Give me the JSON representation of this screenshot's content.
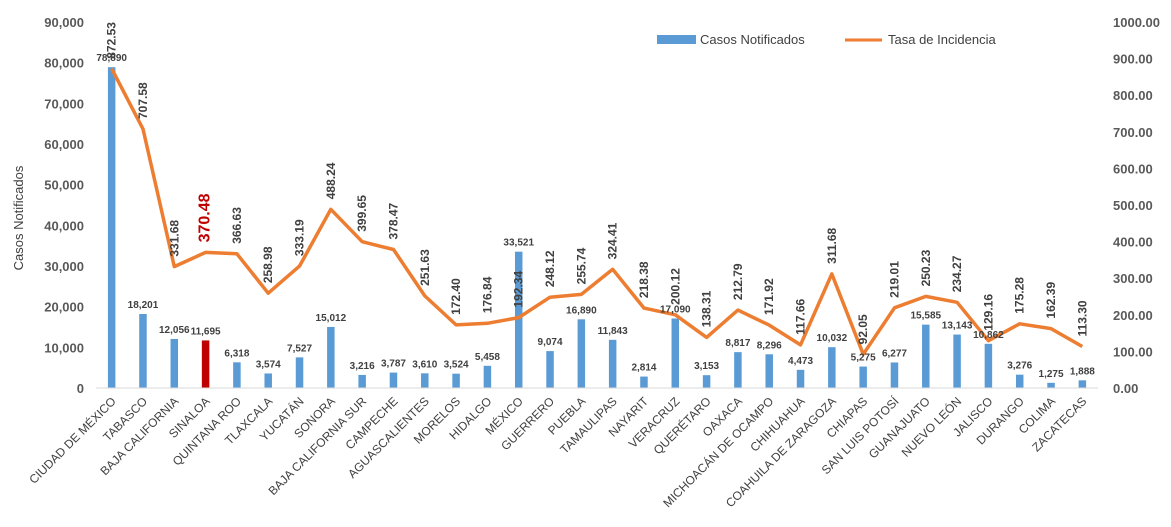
{
  "chart_data": {
    "type": "bar+line",
    "title": "",
    "ylabel_left": "Casos Notificados",
    "ylim_left": [
      0,
      90000
    ],
    "ylim_right": [
      0,
      1000
    ],
    "left_ticks": [
      "0",
      "10,000",
      "20,000",
      "30,000",
      "40,000",
      "50,000",
      "60,000",
      "70,000",
      "80,000",
      "90,000"
    ],
    "right_ticks": [
      "0.00",
      "100.00",
      "200.00",
      "300.00",
      "400.00",
      "500.00",
      "600.00",
      "700.00",
      "800.00",
      "900.00",
      "1000.00"
    ],
    "legend": {
      "position": "top-right",
      "items": [
        "Casos Notificados",
        "Tasa de Incidencia"
      ]
    },
    "bar_color": "#5b9bd5",
    "highlight_bar_color": "#c00000",
    "line_color": "#ed7d31",
    "highlight_index": 3,
    "categories": [
      "CIUDAD DE MÉXICO",
      "TABASCO",
      "BAJA CALIFORNIA",
      "SINALOA",
      "QUINTANA ROO",
      "TLAXCALA",
      "YUCATÁN",
      "SONORA",
      "BAJA CALIFORNIA SUR",
      "CAMPECHE",
      "AGUASCALIENTES",
      "MORELOS",
      "HIDALGO",
      "MÉXICO",
      "GUERRERO",
      "PUEBLA",
      "TAMAULIPAS",
      "NAYARIT",
      "VERACRUZ",
      "QUERÉTARO",
      "OAXACA",
      "MICHOACÁN DE OCAMPO",
      "CHIHUAHUA",
      "COAHUILA DE ZARAGOZA",
      "CHIAPAS",
      "SAN LUIS POTOSÍ",
      "GUANAJUATO",
      "NUEVO LEÓN",
      "JALISCO",
      "DURANGO",
      "COLIMA",
      "ZACATECAS"
    ],
    "series": [
      {
        "name": "Casos Notificados",
        "type": "bar",
        "values": [
          78890,
          18201,
          12056,
          11695,
          6318,
          3574,
          7527,
          15012,
          3216,
          3787,
          3610,
          3524,
          5458,
          33521,
          9074,
          16890,
          11843,
          2814,
          17090,
          3153,
          8817,
          8296,
          4473,
          10032,
          5275,
          6277,
          15585,
          13143,
          10862,
          3276,
          1275,
          1888
        ],
        "labels": [
          "78,890",
          "18,201",
          "12,056",
          "11,695",
          "6,318",
          "3,574",
          "7,527",
          "15,012",
          "3,216",
          "3,787",
          "3,610",
          "3,524",
          "5,458",
          "33,521",
          "9,074",
          "16,890",
          "11,843",
          "2,814",
          "17,090",
          "3,153",
          "8,817",
          "8,296",
          "4,473",
          "10,032",
          "5,275",
          "6,277",
          "15,585",
          "13,143",
          "10,862",
          "3,276",
          "1,275",
          "1,888"
        ]
      },
      {
        "name": "Tasa de Incidencia",
        "type": "line",
        "axis": "right",
        "values": [
          872.53,
          707.58,
          331.68,
          370.48,
          366.63,
          258.98,
          333.19,
          488.24,
          399.65,
          378.47,
          251.63,
          172.4,
          176.84,
          192.34,
          248.12,
          255.74,
          324.41,
          218.38,
          200.12,
          138.31,
          212.79,
          171.92,
          117.66,
          311.68,
          92.05,
          219.01,
          250.23,
          234.27,
          129.16,
          175.28,
          162.39,
          113.3
        ],
        "labels": [
          "872.53",
          "707.58",
          "331.68",
          "370.48",
          "366.63",
          "258.98",
          "333.19",
          "488.24",
          "399.65",
          "378.47",
          "251.63",
          "172.40",
          "176.84",
          "192.34",
          "248.12",
          "255.74",
          "324.41",
          "218.38",
          "200.12",
          "138.31",
          "212.79",
          "171.92",
          "117.66",
          "311.68",
          "92.05",
          "219.01",
          "250.23",
          "234.27",
          "129.16",
          "175.28",
          "162.39",
          "113.30"
        ]
      }
    ]
  }
}
